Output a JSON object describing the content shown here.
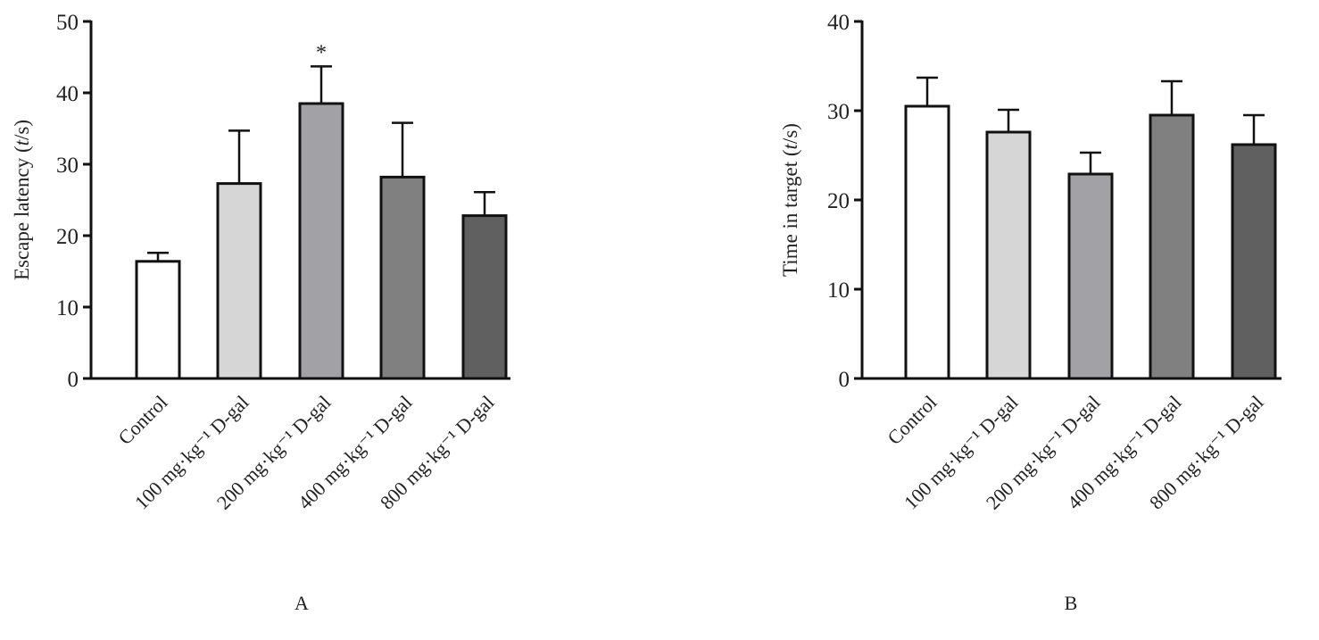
{
  "chart_data": [
    {
      "type": "bar",
      "panel_label": "A",
      "ylabel_parts": [
        "Escape latency (",
        "t",
        "/s)"
      ],
      "ylim": [
        0,
        50
      ],
      "yticks": [
        0,
        10,
        20,
        30,
        40,
        50
      ],
      "categories": [
        "Control",
        "100 mg·kg⁻¹ D-gal",
        "200 mg·kg⁻¹ D-gal",
        "400 mg·kg⁻¹ D-gal",
        "800 mg·kg⁻¹ D-gal"
      ],
      "values": [
        16.4,
        27.3,
        38.5,
        28.2,
        22.8
      ],
      "errors": [
        1.2,
        7.4,
        5.2,
        7.6,
        3.3
      ],
      "annotations": [
        "",
        "",
        "*",
        "",
        ""
      ],
      "colors": [
        "#ffffff",
        "#d6d6d6",
        "#a1a1a6",
        "#808080",
        "#606060"
      ]
    },
    {
      "type": "bar",
      "panel_label": "B",
      "ylabel_parts": [
        "Time in target (",
        "t",
        "/s)"
      ],
      "ylim": [
        0,
        40
      ],
      "yticks": [
        0,
        10,
        20,
        30,
        40
      ],
      "categories": [
        "Control",
        "100 mg·kg⁻¹ D-gal",
        "200 mg·kg⁻¹ D-gal",
        "400 mg·kg⁻¹ D-gal",
        "800 mg·kg⁻¹ D-gal"
      ],
      "values": [
        30.5,
        27.6,
        22.9,
        29.5,
        26.2
      ],
      "errors": [
        3.2,
        2.5,
        2.4,
        3.8,
        3.3
      ],
      "annotations": [
        "",
        "",
        "",
        "",
        ""
      ],
      "colors": [
        "#ffffff",
        "#d6d6d6",
        "#a1a1a6",
        "#808080",
        "#606060"
      ]
    }
  ]
}
